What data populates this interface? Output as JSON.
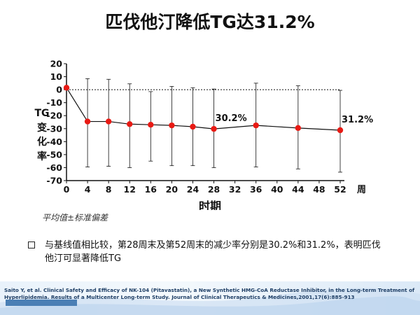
{
  "slide": {
    "title": "匹伐他汀降低TG达31.2%",
    "note": "平均值±标准偏差",
    "bullet": "与基线值相比较，第28周末及第52周末的减少率分别是30.2%和31.2%，表明匹伐他汀可显著降低TG",
    "citation": "Saito Y, et al. Clinical Safety and Efficacy of NK-104 (Pitavastatin), a New Synthetic HMG-CoA Reductase Inhibitor, in the Long-term Treatment of Hyperlipidemia. Results of a Multicenter Long-term Study. Journal of Clinical Therapeutics & Medicines,2001,17(6):885-913",
    "logo_text": "",
    "logo_sub": ""
  },
  "chart_data": {
    "type": "line",
    "title": "",
    "xlabel": "时期",
    "x_unit": "周",
    "ylabel": "TG变化率",
    "ylabel_chars": [
      "TG",
      "变",
      "化",
      "率"
    ],
    "xlim": [
      0,
      52
    ],
    "ylim": [
      -70,
      20
    ],
    "x_ticks": [
      0,
      4,
      8,
      12,
      16,
      20,
      24,
      28,
      32,
      36,
      40,
      44,
      48,
      52
    ],
    "y_ticks": [
      20,
      10,
      0,
      -10,
      -20,
      -30,
      -40,
      -50,
      -60,
      -70
    ],
    "series": [
      {
        "x": [
          0,
          4,
          8,
          12,
          16,
          20,
          24,
          28,
          36,
          44,
          52
        ],
        "y": [
          1.5,
          -24.5,
          -24.5,
          -26.5,
          -27,
          -27.5,
          -28.5,
          -30.2,
          -27.5,
          -29.5,
          -31.2
        ],
        "error_upper": [
          null,
          8.5,
          8,
          4.5,
          -1.5,
          2.5,
          1.5,
          0.5,
          5,
          3,
          -0.5
        ],
        "error_lower": [
          null,
          -59.5,
          -59,
          -60,
          -55,
          -58.5,
          -58.5,
          -60,
          -59.5,
          -61,
          -63.5
        ]
      }
    ],
    "annotations": [
      {
        "x": 28,
        "y": -30.2,
        "text": "30.2%"
      },
      {
        "x": 52,
        "y": -31.2,
        "text": "31.2%"
      }
    ],
    "reference_line": {
      "y": 0,
      "style": "dashed"
    },
    "grid": false,
    "colors": {
      "line": "#111111",
      "point": "#e81a14",
      "error": "#111111"
    }
  }
}
